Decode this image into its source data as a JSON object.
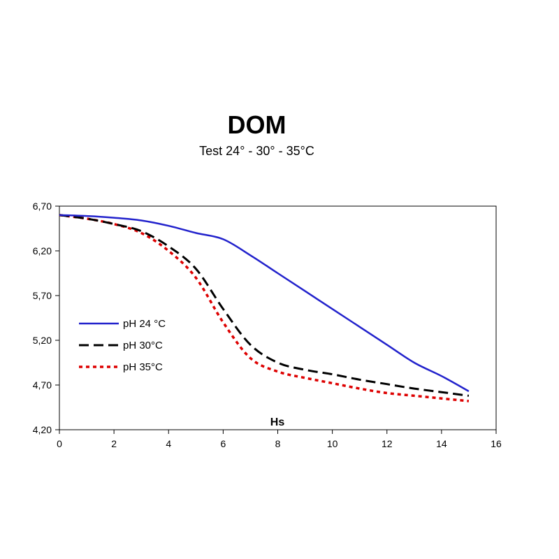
{
  "chart_data": {
    "type": "line",
    "title": "DOM",
    "subtitle": "Test 24° - 30°  - 35°C",
    "xlabel": "Hs",
    "ylabel": "",
    "xlim": [
      0,
      16
    ],
    "ylim": [
      4.2,
      6.7
    ],
    "x_ticks": [
      0,
      2,
      4,
      6,
      8,
      10,
      12,
      14,
      16
    ],
    "x_tick_labels": [
      "0",
      "2",
      "4",
      "6",
      "8",
      "10",
      "12",
      "14",
      "16"
    ],
    "y_ticks": [
      4.2,
      4.7,
      5.2,
      5.7,
      6.2,
      6.7
    ],
    "y_tick_labels": [
      "4,20",
      "4,70",
      "5,20",
      "5,70",
      "6,20",
      "6,70"
    ],
    "grid": false,
    "legend_position": "left-middle",
    "series": [
      {
        "name": "pH 24 °C",
        "color": "#2222cc",
        "style": "solid",
        "x": [
          0,
          1,
          2,
          3,
          4,
          5,
          6,
          7,
          8,
          9,
          10,
          11,
          12,
          13,
          14,
          15
        ],
        "y": [
          6.6,
          6.59,
          6.57,
          6.54,
          6.48,
          6.4,
          6.33,
          6.15,
          5.95,
          5.75,
          5.55,
          5.35,
          5.15,
          4.95,
          4.8,
          4.63
        ]
      },
      {
        "name": "pH 30°C",
        "color": "#000000",
        "style": "dashed",
        "x": [
          0,
          1,
          2,
          3,
          4,
          5,
          6,
          7,
          8,
          9,
          10,
          11,
          12,
          13,
          14,
          15
        ],
        "y": [
          6.6,
          6.56,
          6.5,
          6.42,
          6.25,
          6.0,
          5.55,
          5.15,
          4.95,
          4.87,
          4.82,
          4.76,
          4.71,
          4.66,
          4.62,
          4.58
        ]
      },
      {
        "name": "pH  35°C",
        "color": "#dd0000",
        "style": "dotted",
        "x": [
          0,
          1,
          2,
          3,
          4,
          5,
          6,
          7,
          8,
          9,
          10,
          11,
          12,
          13,
          14,
          15
        ],
        "y": [
          6.6,
          6.56,
          6.5,
          6.4,
          6.2,
          5.9,
          5.4,
          5.0,
          4.85,
          4.78,
          4.72,
          4.66,
          4.61,
          4.58,
          4.55,
          4.52
        ]
      }
    ]
  }
}
